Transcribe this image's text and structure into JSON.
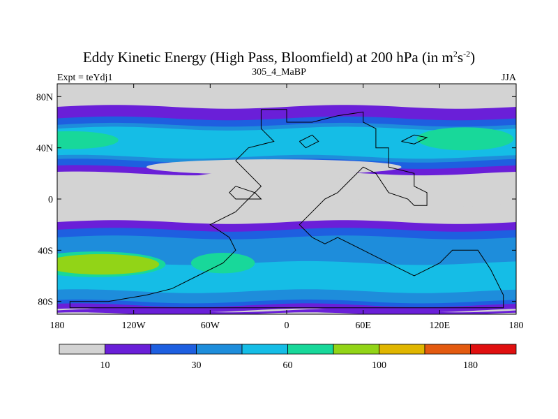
{
  "chart_data": {
    "type": "heatmap",
    "title": "Eddy Kinetic Energy (High Pass, Bloomfield) at 200 hPa (in m",
    "title_unit_exp1": "2",
    "title_unit_mid": "s",
    "title_unit_exp2": "-2",
    "title_end": ")",
    "subtitle": "305_4_MaBP",
    "left_label": "Expt = teYdj1",
    "right_label": "JJA",
    "x_ticks": [
      {
        "value": -180,
        "label": "180"
      },
      {
        "value": -120,
        "label": "120W"
      },
      {
        "value": -60,
        "label": "60W"
      },
      {
        "value": 0,
        "label": "0"
      },
      {
        "value": 60,
        "label": "60E"
      },
      {
        "value": 120,
        "label": "120E"
      },
      {
        "value": 180,
        "label": "180"
      }
    ],
    "y_ticks": [
      {
        "value": 80,
        "label": "80N"
      },
      {
        "value": 40,
        "label": "40N"
      },
      {
        "value": 0,
        "label": "0"
      },
      {
        "value": -40,
        "label": "40S"
      },
      {
        "value": -80,
        "label": "80S"
      }
    ],
    "xlim": [
      -180,
      180
    ],
    "ylim": [
      -90,
      90
    ],
    "colorbar": {
      "colors": [
        "#d3d3d3",
        "#6a1fd8",
        "#1e5fe0",
        "#1e8ddb",
        "#15bde6",
        "#18d89a",
        "#92d417",
        "#e0b600",
        "#e35a10",
        "#e01010"
      ],
      "tick_labels": [
        "10",
        "30",
        "60",
        "100",
        "180"
      ]
    },
    "contour_bands": [
      {
        "level": 1,
        "lat_lo": -90,
        "lat_hi": -87
      },
      {
        "level": 1,
        "lat_lo": -87,
        "lat_hi": -70
      },
      {
        "level": 2,
        "lat_lo": -83,
        "lat_hi": -62
      },
      {
        "level": 3,
        "lat_lo": -80,
        "lat_hi": -58
      },
      {
        "level": 4,
        "lat_lo": -72,
        "lat_hi": -47
      },
      {
        "level": 1,
        "lat_lo": -30,
        "lat_hi": -18
      },
      {
        "level": 2,
        "lat_lo": -40,
        "lat_hi": -24
      },
      {
        "level": 3,
        "lat_lo": -50,
        "lat_hi": -30
      },
      {
        "level": 1,
        "lat_lo": 20,
        "lat_hi": 72
      },
      {
        "level": 2,
        "lat_lo": 25,
        "lat_hi": 63
      },
      {
        "level": 3,
        "lat_lo": 30,
        "lat_hi": 58
      },
      {
        "level": 4,
        "lat_lo": 33,
        "lat_hi": 55
      }
    ],
    "contour_blobs": [
      {
        "level": 5,
        "lon": -170,
        "lat": 46,
        "rlon": 38,
        "rlat": 7
      },
      {
        "level": 5,
        "lon": 140,
        "lat": 47,
        "rlon": 38,
        "rlat": 9
      },
      {
        "level": 5,
        "lon": -150,
        "lat": -51,
        "rlon": 55,
        "rlat": 10
      },
      {
        "level": 6,
        "lon": -145,
        "lat": -51,
        "rlon": 45,
        "rlat": 8
      },
      {
        "level": 5,
        "lon": -50,
        "lat": -50,
        "rlon": 25,
        "rlat": 8
      }
    ],
    "low_regions": [
      {
        "lon": -20,
        "lat": 5,
        "rlon": 80,
        "rlat": 17
      },
      {
        "lon": 140,
        "lat": 0,
        "rlon": 40,
        "rlat": 6
      },
      {
        "lon": -145,
        "lat": 10,
        "rlon": 45,
        "rlat": 4
      },
      {
        "lon": -10,
        "lat": 25,
        "rlon": 100,
        "rlat": 6
      }
    ]
  }
}
